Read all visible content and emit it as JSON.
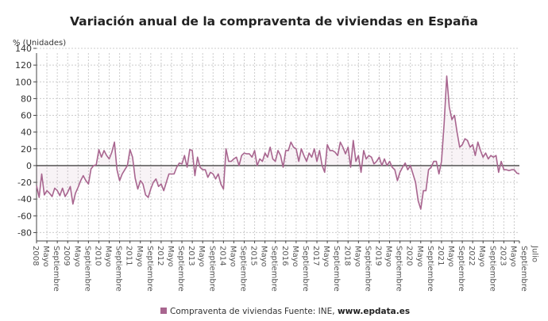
{
  "chart_data": {
    "type": "area",
    "title": "Variación anual de la compraventa de viviendas en España",
    "ylabel": "% (Unidades)",
    "xlabel": "",
    "ylim": [
      -90,
      140
    ],
    "yticks": [
      140,
      120,
      100,
      80,
      60,
      40,
      20,
      0,
      -20,
      -40,
      -60,
      -80
    ],
    "grid": true,
    "legend_position": "bottom",
    "x_start": "2008-01",
    "x_end": "2023-07",
    "x_ticklabels": [
      "2008",
      "Mayo",
      "Septiembre",
      "2009",
      "Mayo",
      "Septiembre",
      "2010",
      "Mayo",
      "Septiembre",
      "2011",
      "Mayo",
      "Septiembre",
      "2012",
      "Mayo",
      "Septiembre",
      "2013",
      "Mayo",
      "Septiembre",
      "2014",
      "Mayo",
      "Septiembre",
      "2015",
      "Mayo",
      "Septiembre",
      "2016",
      "Mayo",
      "Septiembre",
      "2017",
      "Mayo",
      "Septiembre",
      "2018",
      "Mayo",
      "Septiembre",
      "2019",
      "Mayo",
      "Septiembre",
      "2020",
      "Mayo",
      "Septiembre",
      "2021",
      "Mayo",
      "Septiembre",
      "2022",
      "Mayo",
      "Septiembre",
      "2023",
      "Mayo",
      "Septiembre",
      "Julio"
    ],
    "series": [
      {
        "name": "Compraventa de viviendas",
        "color": "#a8658f",
        "values": [
          -24,
          -38,
          -10,
          -35,
          -30,
          -33,
          -37,
          -27,
          -30,
          -36,
          -27,
          -37,
          -32,
          -25,
          -46,
          -33,
          -26,
          -18,
          -12,
          -18,
          -22,
          -4,
          0,
          1,
          19,
          10,
          18,
          12,
          8,
          16,
          28,
          -5,
          -18,
          -10,
          -5,
          0,
          19,
          10,
          -15,
          -28,
          -18,
          -22,
          -35,
          -38,
          -28,
          -20,
          -16,
          -25,
          -22,
          -30,
          -20,
          -10,
          -10,
          -10,
          -2,
          3,
          2,
          12,
          -2,
          19,
          18,
          -12,
          10,
          -2,
          -5,
          -5,
          -14,
          -8,
          -10,
          -16,
          -10,
          -22,
          -28,
          20,
          5,
          5,
          8,
          10,
          0,
          12,
          15,
          14,
          14,
          10,
          18,
          0,
          8,
          5,
          15,
          10,
          22,
          8,
          5,
          18,
          12,
          -2,
          18,
          18,
          28,
          22,
          20,
          5,
          20,
          12,
          5,
          15,
          10,
          20,
          5,
          18,
          0,
          -8,
          25,
          18,
          18,
          16,
          12,
          28,
          22,
          14,
          22,
          -2,
          30,
          5,
          12,
          -8,
          18,
          8,
          12,
          10,
          2,
          5,
          10,
          0,
          8,
          0,
          5,
          -2,
          -5,
          -18,
          -8,
          -2,
          3,
          -5,
          0,
          -10,
          -20,
          -42,
          -52,
          -30,
          -30,
          -5,
          -2,
          5,
          5,
          -10,
          5,
          50,
          107,
          70,
          55,
          60,
          40,
          22,
          25,
          32,
          30,
          22,
          25,
          12,
          28,
          18,
          10,
          15,
          8,
          12,
          10,
          12,
          -8,
          5,
          -5,
          -5,
          -6,
          -5,
          -5,
          -9,
          -10
        ]
      }
    ]
  },
  "legend": {
    "series_label": "Compraventa de viviendas",
    "source_prefix": "Fuente: INE, ",
    "source_site": "www.epdata.es"
  }
}
